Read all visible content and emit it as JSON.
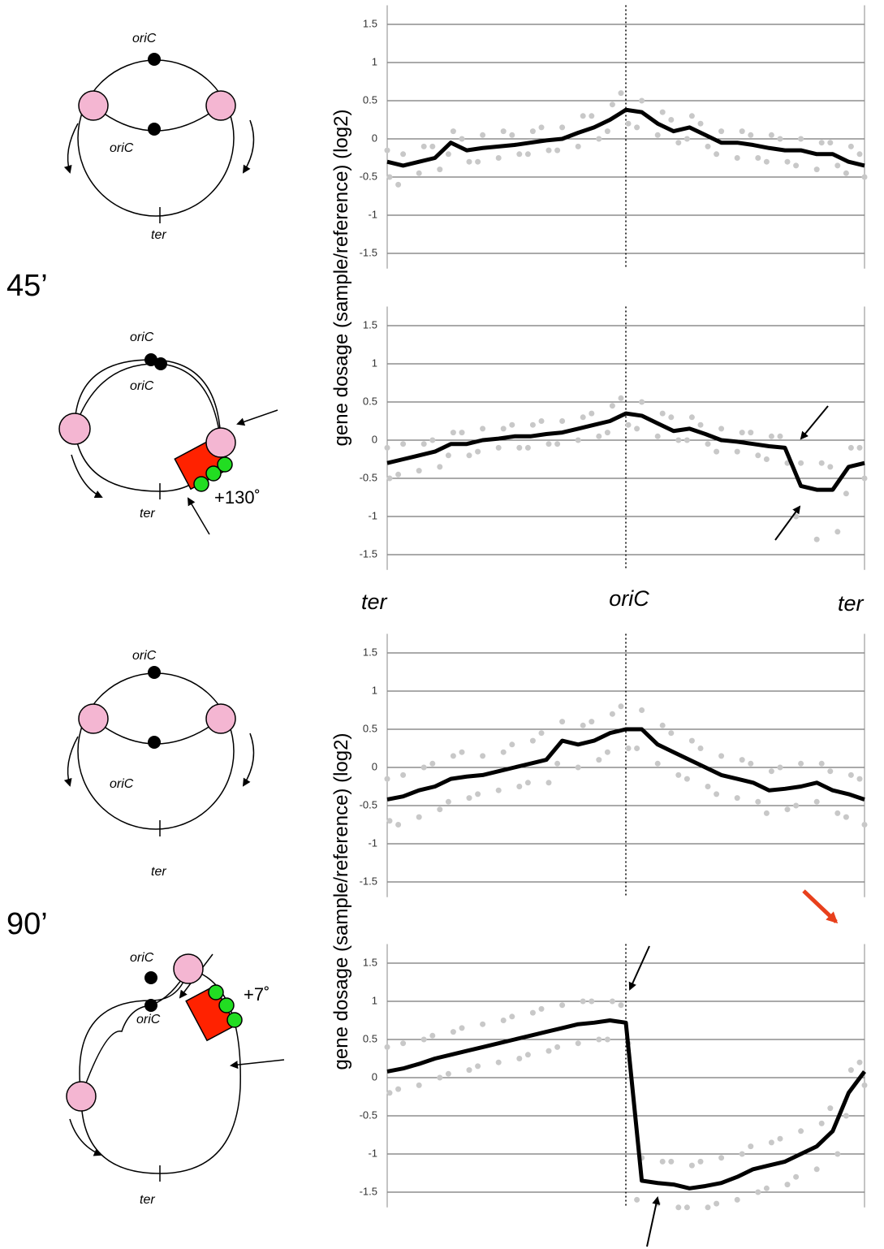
{
  "time_labels": [
    "45’",
    "90’"
  ],
  "diagrams": [
    {
      "labels": [
        "oriC",
        "oriC",
        "ter"
      ]
    },
    {
      "labels": [
        "oriC",
        "oriC",
        "ter"
      ],
      "angle": "+130˚"
    },
    {
      "labels": [
        "oriC",
        "oriC",
        "ter"
      ]
    },
    {
      "labels": [
        "oriC",
        "oriC",
        "ter"
      ],
      "angle": "+7˚"
    }
  ],
  "y_axis_labels": [
    "gene dosage (sample/reference) (log2)",
    "gene dosage (sample/reference) (log2)"
  ],
  "x_axis_labels": [
    "ter",
    "oriC",
    "ter"
  ],
  "chart_data": [
    {
      "type": "line",
      "ylim": [
        -1.7,
        1.75
      ],
      "yticks": [
        1.5,
        1,
        0.5,
        0,
        -0.5,
        -1,
        -1.5
      ],
      "grid": true,
      "series": [
        {
          "color": "#c8c8c8",
          "marker": "dot",
          "values": [
            -0.15,
            -0.2,
            -0.1,
            -0.1,
            0.1,
            0.0,
            0.05,
            0.1,
            0.05,
            0.1,
            0.15,
            0.15,
            0.3,
            0.3,
            0.45,
            0.6,
            0.5,
            0.35,
            0.25,
            0.3,
            0.2,
            0.1,
            0.1,
            0.05,
            0.05,
            0.0,
            0.0,
            -0.05,
            -0.05,
            -0.1,
            -0.2
          ]
        },
        {
          "color": "#c8c8c8",
          "marker": "dot",
          "values": [
            -0.5,
            -0.6,
            -0.45,
            -0.4,
            -0.2,
            -0.3,
            -0.3,
            -0.25,
            -0.2,
            -0.2,
            -0.15,
            -0.15,
            -0.1,
            0.0,
            0.1,
            0.2,
            0.15,
            0.05,
            -0.05,
            0.0,
            -0.1,
            -0.2,
            -0.25,
            -0.25,
            -0.3,
            -0.3,
            -0.35,
            -0.4,
            -0.35,
            -0.45,
            -0.5
          ]
        },
        {
          "color": "#000000",
          "values": [
            -0.3,
            -0.35,
            -0.3,
            -0.25,
            -0.05,
            -0.15,
            -0.12,
            -0.1,
            -0.08,
            -0.05,
            -0.02,
            0.0,
            0.08,
            0.15,
            0.25,
            0.38,
            0.35,
            0.2,
            0.1,
            0.15,
            0.05,
            -0.05,
            -0.05,
            -0.08,
            -0.12,
            -0.15,
            -0.15,
            -0.2,
            -0.2,
            -0.3,
            -0.35
          ]
        }
      ]
    },
    {
      "type": "line",
      "ylim": [
        -1.7,
        1.75
      ],
      "yticks": [
        1.5,
        1,
        0.5,
        0,
        -0.5,
        -1,
        -1.5
      ],
      "grid": true,
      "series": [
        {
          "color": "#c8c8c8",
          "marker": "dot",
          "values": [
            -0.1,
            -0.05,
            -0.05,
            0.0,
            0.1,
            0.1,
            0.15,
            0.15,
            0.2,
            0.2,
            0.25,
            0.25,
            0.3,
            0.35,
            0.45,
            0.55,
            0.5,
            0.35,
            0.3,
            0.3,
            0.2,
            0.15,
            0.1,
            0.1,
            0.05,
            0.05,
            -0.3,
            -0.3,
            -0.35,
            -0.1,
            -0.1
          ]
        },
        {
          "color": "#c8c8c8",
          "marker": "dot",
          "values": [
            -0.5,
            -0.45,
            -0.4,
            -0.35,
            -0.2,
            -0.2,
            -0.15,
            -0.1,
            -0.1,
            -0.1,
            -0.05,
            -0.05,
            0.0,
            0.05,
            0.1,
            0.2,
            0.15,
            0.05,
            0.0,
            0.0,
            -0.05,
            -0.15,
            -0.15,
            -0.2,
            -0.25,
            -0.3,
            -1.0,
            -1.3,
            -1.2,
            -0.7,
            -0.5
          ]
        },
        {
          "color": "#000000",
          "values": [
            -0.3,
            -0.25,
            -0.2,
            -0.15,
            -0.05,
            -0.05,
            0.0,
            0.02,
            0.05,
            0.05,
            0.08,
            0.1,
            0.15,
            0.2,
            0.25,
            0.35,
            0.32,
            0.22,
            0.12,
            0.15,
            0.08,
            0.0,
            -0.02,
            -0.05,
            -0.08,
            -0.1,
            -0.6,
            -0.65,
            -0.65,
            -0.35,
            -0.3
          ]
        }
      ]
    },
    {
      "type": "line",
      "ylim": [
        -1.7,
        1.75
      ],
      "yticks": [
        1.5,
        1,
        0.5,
        0,
        -0.5,
        -1,
        -1.5
      ],
      "grid": true,
      "series": [
        {
          "color": "#c8c8c8",
          "marker": "dot",
          "values": [
            -0.15,
            -0.1,
            0.0,
            0.05,
            0.15,
            0.2,
            0.15,
            0.2,
            0.3,
            0.35,
            0.45,
            0.6,
            0.55,
            0.6,
            0.7,
            0.8,
            0.75,
            0.55,
            0.45,
            0.35,
            0.25,
            0.15,
            0.1,
            0.05,
            -0.05,
            0.0,
            0.05,
            0.05,
            -0.05,
            -0.1,
            -0.15
          ]
        },
        {
          "color": "#c8c8c8",
          "marker": "dot",
          "values": [
            -0.7,
            -0.75,
            -0.65,
            -0.55,
            -0.45,
            -0.4,
            -0.35,
            -0.3,
            -0.25,
            -0.2,
            -0.2,
            0.05,
            0.0,
            0.1,
            0.2,
            0.25,
            0.25,
            0.05,
            -0.1,
            -0.15,
            -0.25,
            -0.35,
            -0.4,
            -0.45,
            -0.6,
            -0.55,
            -0.5,
            -0.45,
            -0.6,
            -0.65,
            -0.75
          ]
        },
        {
          "color": "#000000",
          "values": [
            -0.42,
            -0.38,
            -0.3,
            -0.25,
            -0.15,
            -0.12,
            -0.1,
            -0.05,
            0.0,
            0.05,
            0.1,
            0.35,
            0.3,
            0.35,
            0.45,
            0.5,
            0.5,
            0.3,
            0.2,
            0.1,
            0.0,
            -0.1,
            -0.15,
            -0.2,
            -0.3,
            -0.28,
            -0.25,
            -0.2,
            -0.3,
            -0.35,
            -0.42
          ]
        }
      ]
    },
    {
      "type": "line",
      "ylim": [
        -1.7,
        1.75
      ],
      "yticks": [
        1.5,
        1,
        0.5,
        0,
        -0.5,
        -1,
        -1.5
      ],
      "grid": true,
      "series": [
        {
          "color": "#c8c8c8",
          "marker": "dot",
          "values": [
            0.4,
            0.45,
            0.5,
            0.55,
            0.6,
            0.65,
            0.7,
            0.75,
            0.8,
            0.85,
            0.9,
            0.95,
            1.0,
            1.0,
            1.0,
            0.95,
            -1.05,
            -1.1,
            -1.1,
            -1.15,
            -1.1,
            -1.05,
            -1.0,
            -0.9,
            -0.85,
            -0.8,
            -0.7,
            -0.6,
            -0.4,
            0.1,
            0.2
          ]
        },
        {
          "color": "#c8c8c8",
          "marker": "dot",
          "values": [
            -0.2,
            -0.15,
            -0.1,
            0.0,
            0.05,
            0.1,
            0.15,
            0.2,
            0.25,
            0.3,
            0.35,
            0.4,
            0.45,
            0.5,
            0.5,
            0.45,
            -1.6,
            -1.65,
            -1.7,
            -1.7,
            -1.7,
            -1.65,
            -1.6,
            -1.5,
            -1.45,
            -1.4,
            -1.3,
            -1.2,
            -1.0,
            -0.5,
            -0.1
          ]
        },
        {
          "color": "#000000",
          "values": [
            0.08,
            0.12,
            0.18,
            0.25,
            0.3,
            0.35,
            0.4,
            0.45,
            0.5,
            0.55,
            0.6,
            0.65,
            0.7,
            0.72,
            0.75,
            0.72,
            -1.35,
            -1.38,
            -1.4,
            -1.45,
            -1.42,
            -1.38,
            -1.3,
            -1.2,
            -1.15,
            -1.1,
            -1.0,
            -0.9,
            -0.7,
            -0.2,
            0.08
          ]
        }
      ]
    }
  ]
}
